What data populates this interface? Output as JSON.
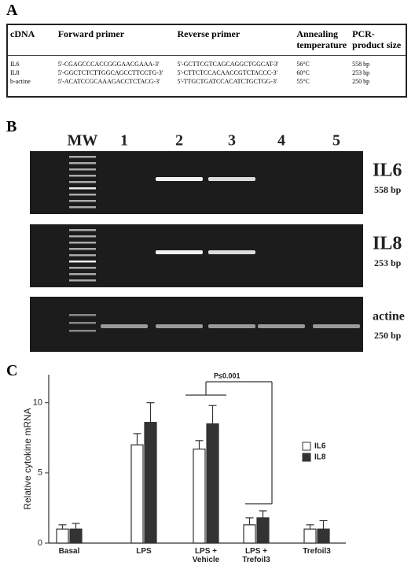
{
  "panels": {
    "a": "A",
    "b": "B",
    "c": "C"
  },
  "table": {
    "headers": [
      "cDNA",
      "Forward primer",
      "Reverse primer",
      "Annealing temperature",
      "PCR-product size"
    ],
    "rows": [
      [
        "IL6",
        "5'-CGAGCCCACCGGGAACGAAA-3'",
        "5'-GCTTCGTCAGCAGGCTGGCAT-3'",
        "56°C",
        "558 bp"
      ],
      [
        "IL8",
        "5'-GGCTCTCTTGGCAGCCTTCCTG-3'",
        "5'-CTTCTCCACAACCGTCTACCC-3'",
        "60°C",
        "253 bp"
      ],
      [
        "b-actine",
        "5'-ACATCCGCAAAGACCTCTACG-3'",
        "5'-TTGCTGATCCACATCTGCTGG-3'",
        "55°C",
        "250 bp"
      ]
    ]
  },
  "gel": {
    "lanes": [
      "MW",
      "1",
      "2",
      "3",
      "4",
      "5"
    ],
    "bands": [
      {
        "name": "IL6",
        "size": "558 bp"
      },
      {
        "name": "IL8",
        "size": "253 bp"
      },
      {
        "name": "actine",
        "size": "250 bp"
      }
    ]
  },
  "chart_data": {
    "type": "bar",
    "ylabel": "Relative cytokine mRNA",
    "categories": [
      "Basal",
      "LPS",
      "LPS +\nVehicle",
      "LPS +\nTrefoil3",
      "Trefoil3"
    ],
    "series": [
      {
        "name": "IL6",
        "color": "#ffffff",
        "values": [
          1.0,
          7.0,
          6.7,
          1.3,
          1.0
        ],
        "errors": [
          0.3,
          0.8,
          0.6,
          0.5,
          0.3
        ]
      },
      {
        "name": "IL8",
        "color": "#333333",
        "values": [
          1.0,
          8.6,
          8.5,
          1.8,
          1.0
        ],
        "errors": [
          0.4,
          1.4,
          1.3,
          0.5,
          0.6
        ]
      }
    ],
    "ylim": [
      0,
      12
    ],
    "yticks": [
      0,
      5,
      10
    ],
    "annotation": "P≤0.001"
  }
}
